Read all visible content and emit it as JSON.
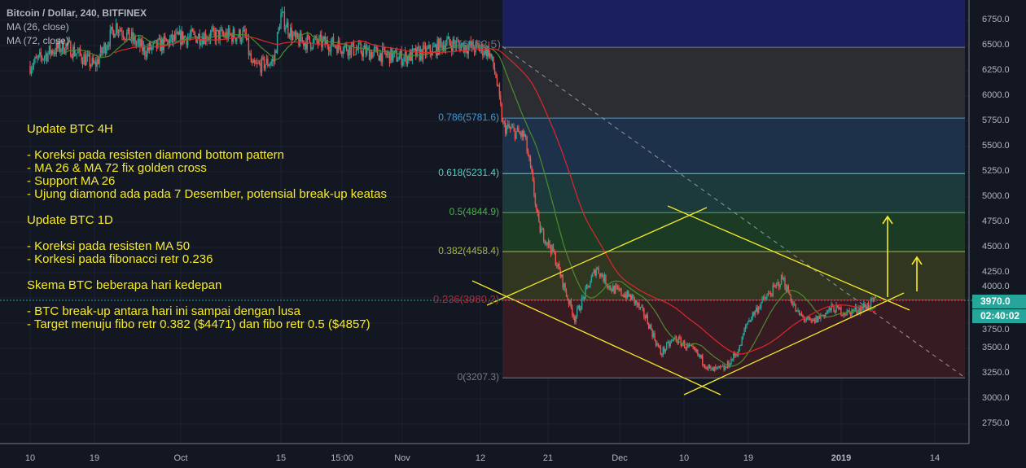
{
  "legend": {
    "symbol": "Bitcoin / Dollar, 240, BITFINEX",
    "ma1": "MA (26, close)",
    "ma2": "MA (72, close)"
  },
  "notes": [
    "Update BTC 4H",
    "- Koreksi pada resisten diamond bottom pattern",
    "- MA 26 & MA 72 fix golden cross",
    "- Support MA 26",
    "- Ujung diamond ada pada 7 Desember, potensial break-up keatas",
    "Update BTC 1D",
    "- Koreksi pada resisten MA 50",
    "- Korkesi pada fibonacci retr 0.236",
    "Skema BTC beberapa hari kedepan",
    "- BTC break-up antara hari ini sampai dengan lusa",
    "- Target menuju fibo retr 0.382 ($4471) dan fibo retr 0.5 ($4857)"
  ],
  "last_price": "3970.0",
  "countdown": "02:40:02",
  "colors": {
    "up": "#26a69a",
    "down": "#ef5350",
    "ma26": "#4c8c2b",
    "ma72": "#e0262b",
    "annotation": "#f5ea2a",
    "background": "#131722"
  },
  "chart_data": {
    "type": "candlestick",
    "symbol": "BTCUSD",
    "interval": "240",
    "y_ticks": [
      "6750.0",
      "6500.0",
      "6250.0",
      "6000.0",
      "5750.0",
      "5500.0",
      "5250.0",
      "5000.0",
      "4750.0",
      "4500.0",
      "4250.0",
      "4000.0",
      "3750.0",
      "3500.0",
      "3250.0",
      "3000.0",
      "2750.0"
    ],
    "ylim": [
      2700,
      6950
    ],
    "x_ticks": [
      "10",
      "19",
      "Oct",
      "15",
      "15:00",
      "Nov",
      "12",
      "21",
      "Dec",
      "10",
      "19",
      "2019",
      "14"
    ],
    "grid": true,
    "approx_close": [
      [
        "2018-09-10",
        6300
      ],
      [
        "2018-09-13",
        6450
      ],
      [
        "2018-09-15",
        6500
      ],
      [
        "2018-09-19",
        6300
      ],
      [
        "2018-09-22",
        6700
      ],
      [
        "2018-09-26",
        6450
      ],
      [
        "2018-10-01",
        6580
      ],
      [
        "2018-10-05",
        6600
      ],
      [
        "2018-10-10",
        6600
      ],
      [
        "2018-10-11",
        6280
      ],
      [
        "2018-10-14",
        6350
      ],
      [
        "2018-10-15",
        6800
      ],
      [
        "2018-10-17",
        6550
      ],
      [
        "2018-10-22",
        6520
      ],
      [
        "2018-10-26",
        6450
      ],
      [
        "2018-11-01",
        6380
      ],
      [
        "2018-11-05",
        6450
      ],
      [
        "2018-11-07",
        6530
      ],
      [
        "2018-11-13",
        6450
      ],
      [
        "2018-11-14",
        6200
      ],
      [
        "2018-11-15",
        5700
      ],
      [
        "2018-11-18",
        5600
      ],
      [
        "2018-11-19",
        5200
      ],
      [
        "2018-11-20",
        4700
      ],
      [
        "2018-11-22",
        4450
      ],
      [
        "2018-11-24",
        4000
      ],
      [
        "2018-11-25",
        3800
      ],
      [
        "2018-11-28",
        4300
      ],
      [
        "2018-11-30",
        4100
      ],
      [
        "2018-12-03",
        4000
      ],
      [
        "2018-12-05",
        3800
      ],
      [
        "2018-12-07",
        3450
      ],
      [
        "2018-12-09",
        3600
      ],
      [
        "2018-12-12",
        3450
      ],
      [
        "2018-12-14",
        3280
      ],
      [
        "2018-12-16",
        3300
      ],
      [
        "2018-12-18",
        3500
      ],
      [
        "2018-12-19",
        3750
      ],
      [
        "2018-12-21",
        3950
      ],
      [
        "2018-12-23",
        4100
      ],
      [
        "2018-12-24",
        4200
      ],
      [
        "2018-12-26",
        3850
      ],
      [
        "2018-12-28",
        3750
      ],
      [
        "2018-12-31",
        3900
      ],
      [
        "2019-01-02",
        3850
      ],
      [
        "2019-01-04",
        3900
      ],
      [
        "2019-01-06",
        3970
      ]
    ],
    "fibonacci": [
      {
        "level": "1",
        "price": 6482.5,
        "label": "1(6482.5)",
        "color": "#787b86"
      },
      {
        "level": "0.786",
        "price": 5781.6,
        "label": "0.786(5781.6)",
        "color": "#3d9bd9"
      },
      {
        "level": "0.618",
        "price": 5231.4,
        "label": "0.618(5231.4)",
        "color": "#4fd4c4"
      },
      {
        "level": "0.5",
        "price": 4844.9,
        "label": "0.5(4844.9)",
        "color": "#4caf50"
      },
      {
        "level": "0.382",
        "price": 4458.4,
        "label": "0.382(4458.4)",
        "color": "#a6b83a"
      },
      {
        "level": "0.236",
        "price": 3980.2,
        "label": "0.236(3980.2)",
        "color": "#b22833"
      },
      {
        "level": "0",
        "price": 3207.3,
        "label": "0(3207.3)",
        "color": "#787b86"
      }
    ],
    "series": [
      {
        "name": "MA (26, close)"
      },
      {
        "name": "MA (72, close)"
      }
    ]
  }
}
